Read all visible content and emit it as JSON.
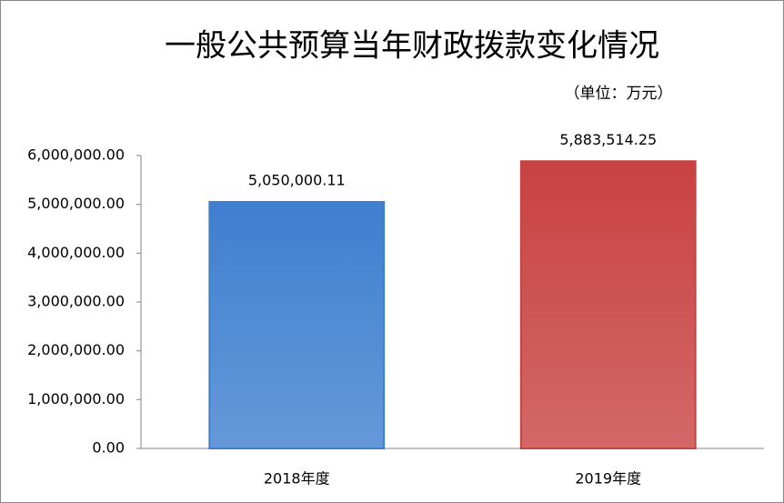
{
  "chart_data": {
    "type": "bar",
    "title": "一般公共预算当年财政拨款变化情况",
    "subtitle": "（单位：万元）",
    "categories": [
      "2018年度",
      "2019年度"
    ],
    "values": [
      5050000.11,
      5883514.25
    ],
    "value_labels": [
      "5,050,000.11",
      "5,883,514.25"
    ],
    "colors": [
      "#3f7fcf",
      "#c84242"
    ],
    "ylim": [
      0,
      6000000
    ],
    "yticks": [
      {
        "value": 0,
        "label": "0.00"
      },
      {
        "value": 1000000,
        "label": "1,000,000.00"
      },
      {
        "value": 2000000,
        "label": "2,000,000.00"
      },
      {
        "value": 3000000,
        "label": "3,000,000.00"
      },
      {
        "value": 4000000,
        "label": "4,000,000.00"
      },
      {
        "value": 5000000,
        "label": "5,000,000.00"
      },
      {
        "value": 6000000,
        "label": "6,000,000.00"
      }
    ],
    "grid": false
  }
}
